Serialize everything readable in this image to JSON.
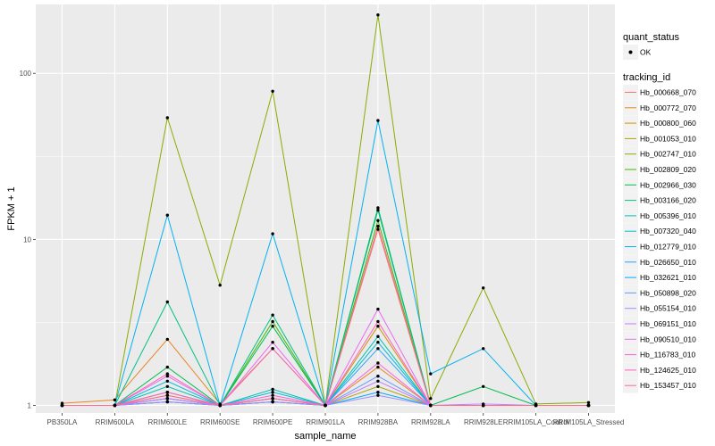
{
  "chart_data": {
    "type": "line",
    "xlabel": "sample_name",
    "ylabel": "FPKM + 1",
    "y_scale": "log10",
    "ylim": [
      0.9,
      260
    ],
    "y_ticks": [
      1,
      10,
      100
    ],
    "y_tick_labels": [
      "1",
      "10",
      "100"
    ],
    "categories": [
      "PB350LA",
      "RRIM600LA",
      "RRIM600LE",
      "RRIM600SE",
      "RRIM600PE",
      "RRIM901LA",
      "RRIM928BA",
      "RRIM928LA",
      "RRIM928LE",
      "RRIM105LA_Control",
      "RRIM105LA_Stressed"
    ],
    "grid": true,
    "legend_position": "right",
    "shape_legend": {
      "title": "quant_status",
      "entries": [
        "OK"
      ]
    },
    "color_legend_title": "tracking_id",
    "series": [
      {
        "name": "Hb_000668_070",
        "color": "#F8766D",
        "values": [
          1.0,
          1.0,
          1.1,
          1.0,
          1.05,
          1.0,
          11.5,
          1.0,
          1.0,
          1.0,
          1.0
        ]
      },
      {
        "name": "Hb_000772_070",
        "color": "#E7851E",
        "values": [
          1.03,
          1.08,
          2.5,
          1.02,
          2.2,
          1.0,
          1.7,
          1.0,
          1.0,
          1.0,
          1.0
        ]
      },
      {
        "name": "Hb_000800_060",
        "color": "#D09400",
        "values": [
          1.0,
          1.0,
          1.15,
          1.0,
          1.1,
          1.0,
          3.0,
          1.0,
          1.0,
          1.0,
          1.0
        ]
      },
      {
        "name": "Hb_001053_010",
        "color": "#B2A100",
        "values": [
          1.0,
          1.0,
          1.05,
          1.0,
          1.05,
          1.0,
          1.3,
          1.0,
          1.0,
          1.0,
          1.0
        ]
      },
      {
        "name": "Hb_002747_010",
        "color": "#89AC00",
        "values": [
          1.0,
          1.0,
          54.0,
          5.3,
          78.0,
          1.0,
          225.0,
          1.1,
          5.1,
          1.02,
          1.04
        ]
      },
      {
        "name": "Hb_002809_020",
        "color": "#45B500",
        "values": [
          1.0,
          1.0,
          1.2,
          1.0,
          3.2,
          1.0,
          13.0,
          1.0,
          1.0,
          1.0,
          1.0
        ]
      },
      {
        "name": "Hb_002966_030",
        "color": "#00BC51",
        "values": [
          1.0,
          1.0,
          1.7,
          1.0,
          3.0,
          1.0,
          15.5,
          1.0,
          1.3,
          1.0,
          1.0
        ]
      },
      {
        "name": "Hb_003166_020",
        "color": "#00C087",
        "values": [
          1.0,
          1.0,
          4.2,
          1.0,
          3.5,
          1.0,
          15.0,
          1.0,
          1.0,
          1.0,
          1.0
        ]
      },
      {
        "name": "Hb_005396_010",
        "color": "#00C0B2",
        "values": [
          1.0,
          1.0,
          1.3,
          1.0,
          1.25,
          1.0,
          2.6,
          1.0,
          1.0,
          1.0,
          1.0
        ]
      },
      {
        "name": "Hb_007320_040",
        "color": "#00BCD6",
        "values": [
          1.0,
          1.0,
          1.4,
          1.0,
          1.2,
          1.0,
          2.4,
          1.0,
          1.0,
          1.0,
          1.0
        ]
      },
      {
        "name": "Hb_012779_010",
        "color": "#00B3F2",
        "values": [
          1.0,
          1.0,
          14.0,
          1.0,
          10.8,
          1.0,
          52.0,
          1.55,
          2.2,
          1.0,
          1.0
        ]
      },
      {
        "name": "Hb_026650_010",
        "color": "#29A3FF",
        "values": [
          1.0,
          1.0,
          1.1,
          1.0,
          1.1,
          1.0,
          2.2,
          1.0,
          1.0,
          1.0,
          1.0
        ]
      },
      {
        "name": "Hb_032621_010",
        "color": "#00A9FF",
        "values": [
          1.0,
          1.0,
          1.05,
          1.0,
          1.05,
          1.0,
          1.2,
          1.0,
          1.0,
          1.0,
          1.0
        ]
      },
      {
        "name": "Hb_050898_020",
        "color": "#619CFF",
        "values": [
          1.0,
          1.0,
          1.1,
          1.0,
          1.1,
          1.0,
          1.5,
          1.0,
          1.0,
          1.0,
          1.0
        ]
      },
      {
        "name": "Hb_055154_010",
        "color": "#9C8DFF",
        "values": [
          1.0,
          1.0,
          1.05,
          1.0,
          1.05,
          1.0,
          1.15,
          1.0,
          1.0,
          1.0,
          1.0
        ]
      },
      {
        "name": "Hb_069151_010",
        "color": "#C77CFF",
        "values": [
          1.0,
          1.0,
          1.1,
          1.0,
          1.1,
          1.0,
          1.4,
          1.0,
          1.02,
          1.0,
          1.0
        ]
      },
      {
        "name": "Hb_090510_010",
        "color": "#E76BF3",
        "values": [
          1.0,
          1.0,
          1.5,
          1.0,
          2.4,
          1.0,
          3.8,
          1.0,
          1.0,
          1.0,
          1.0
        ]
      },
      {
        "name": "Hb_116783_010",
        "color": "#FA62DB",
        "values": [
          1.0,
          1.0,
          1.2,
          1.0,
          1.15,
          1.0,
          1.8,
          1.0,
          1.0,
          1.0,
          1.0
        ]
      },
      {
        "name": "Hb_124625_010",
        "color": "#FF62BC",
        "values": [
          1.0,
          1.0,
          1.55,
          1.0,
          2.2,
          1.0,
          3.2,
          1.0,
          1.0,
          1.0,
          1.0
        ]
      },
      {
        "name": "Hb_153457_010",
        "color": "#FF6C91",
        "values": [
          1.0,
          1.0,
          1.15,
          1.0,
          1.1,
          1.0,
          12.0,
          1.0,
          1.0,
          1.0,
          1.0
        ]
      }
    ]
  }
}
